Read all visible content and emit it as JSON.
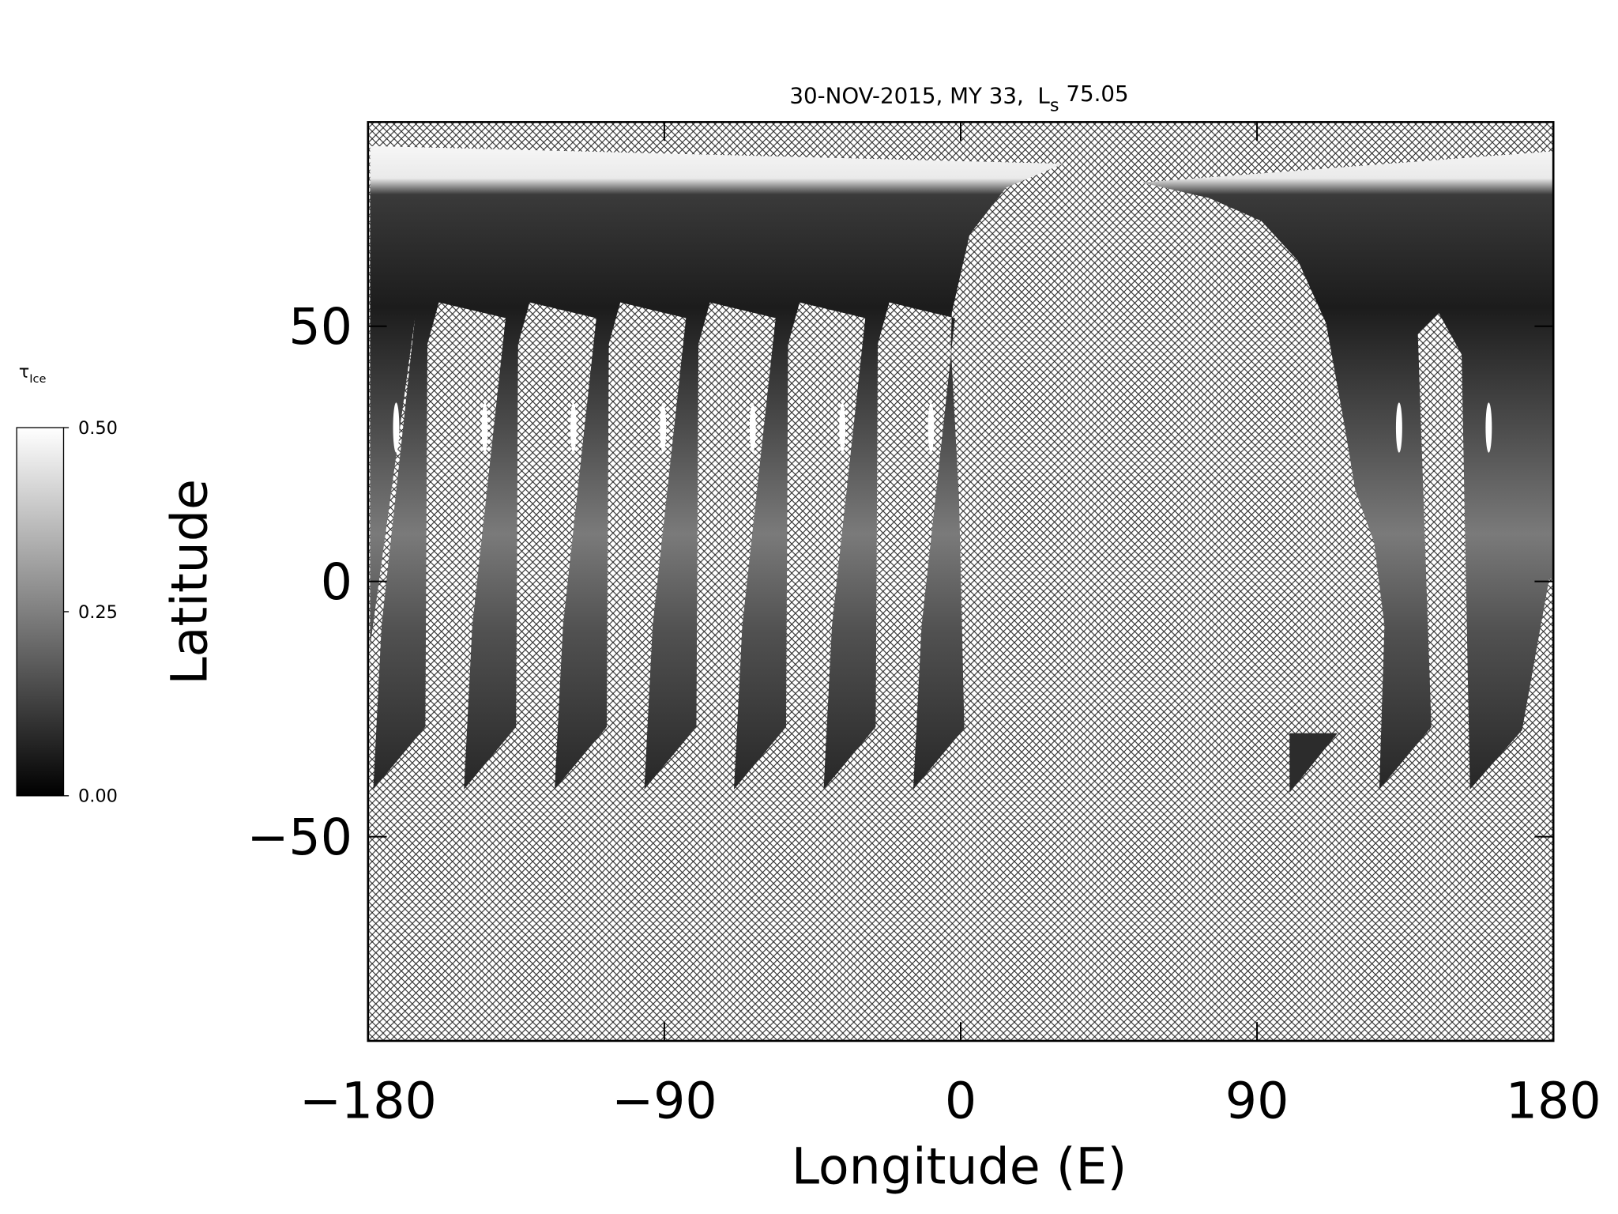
{
  "chart_data": {
    "type": "map",
    "title": [
      {
        "text": "30-NOV-2015, MY 33,  L"
      },
      {
        "text": "s",
        "sub": true
      },
      {
        "text": " 75.05"
      }
    ],
    "xlabel": "Longitude (E)",
    "ylabel": "Latitude",
    "xlim": [
      -180,
      180
    ],
    "ylim": [
      -90,
      90
    ],
    "xticks": [
      {
        "value": -180,
        "label": "−180"
      },
      {
        "value": -90,
        "label": "−90"
      },
      0,
      90,
      180
    ],
    "yticks": [
      {
        "value": -50,
        "label": "−50"
      },
      0,
      50
    ],
    "colorbar": {
      "label": [
        {
          "text": "τ"
        },
        {
          "text": "Ice",
          "sub": true
        }
      ],
      "lim": [
        0,
        0.5
      ],
      "ticks": [
        {
          "value": 0,
          "label": "0.00"
        },
        {
          "value": 0.25,
          "label": "0.25"
        },
        {
          "value": 0.5,
          "label": "0.50"
        }
      ],
      "colors": [
        "#000000",
        "#ffffff"
      ]
    }
  }
}
